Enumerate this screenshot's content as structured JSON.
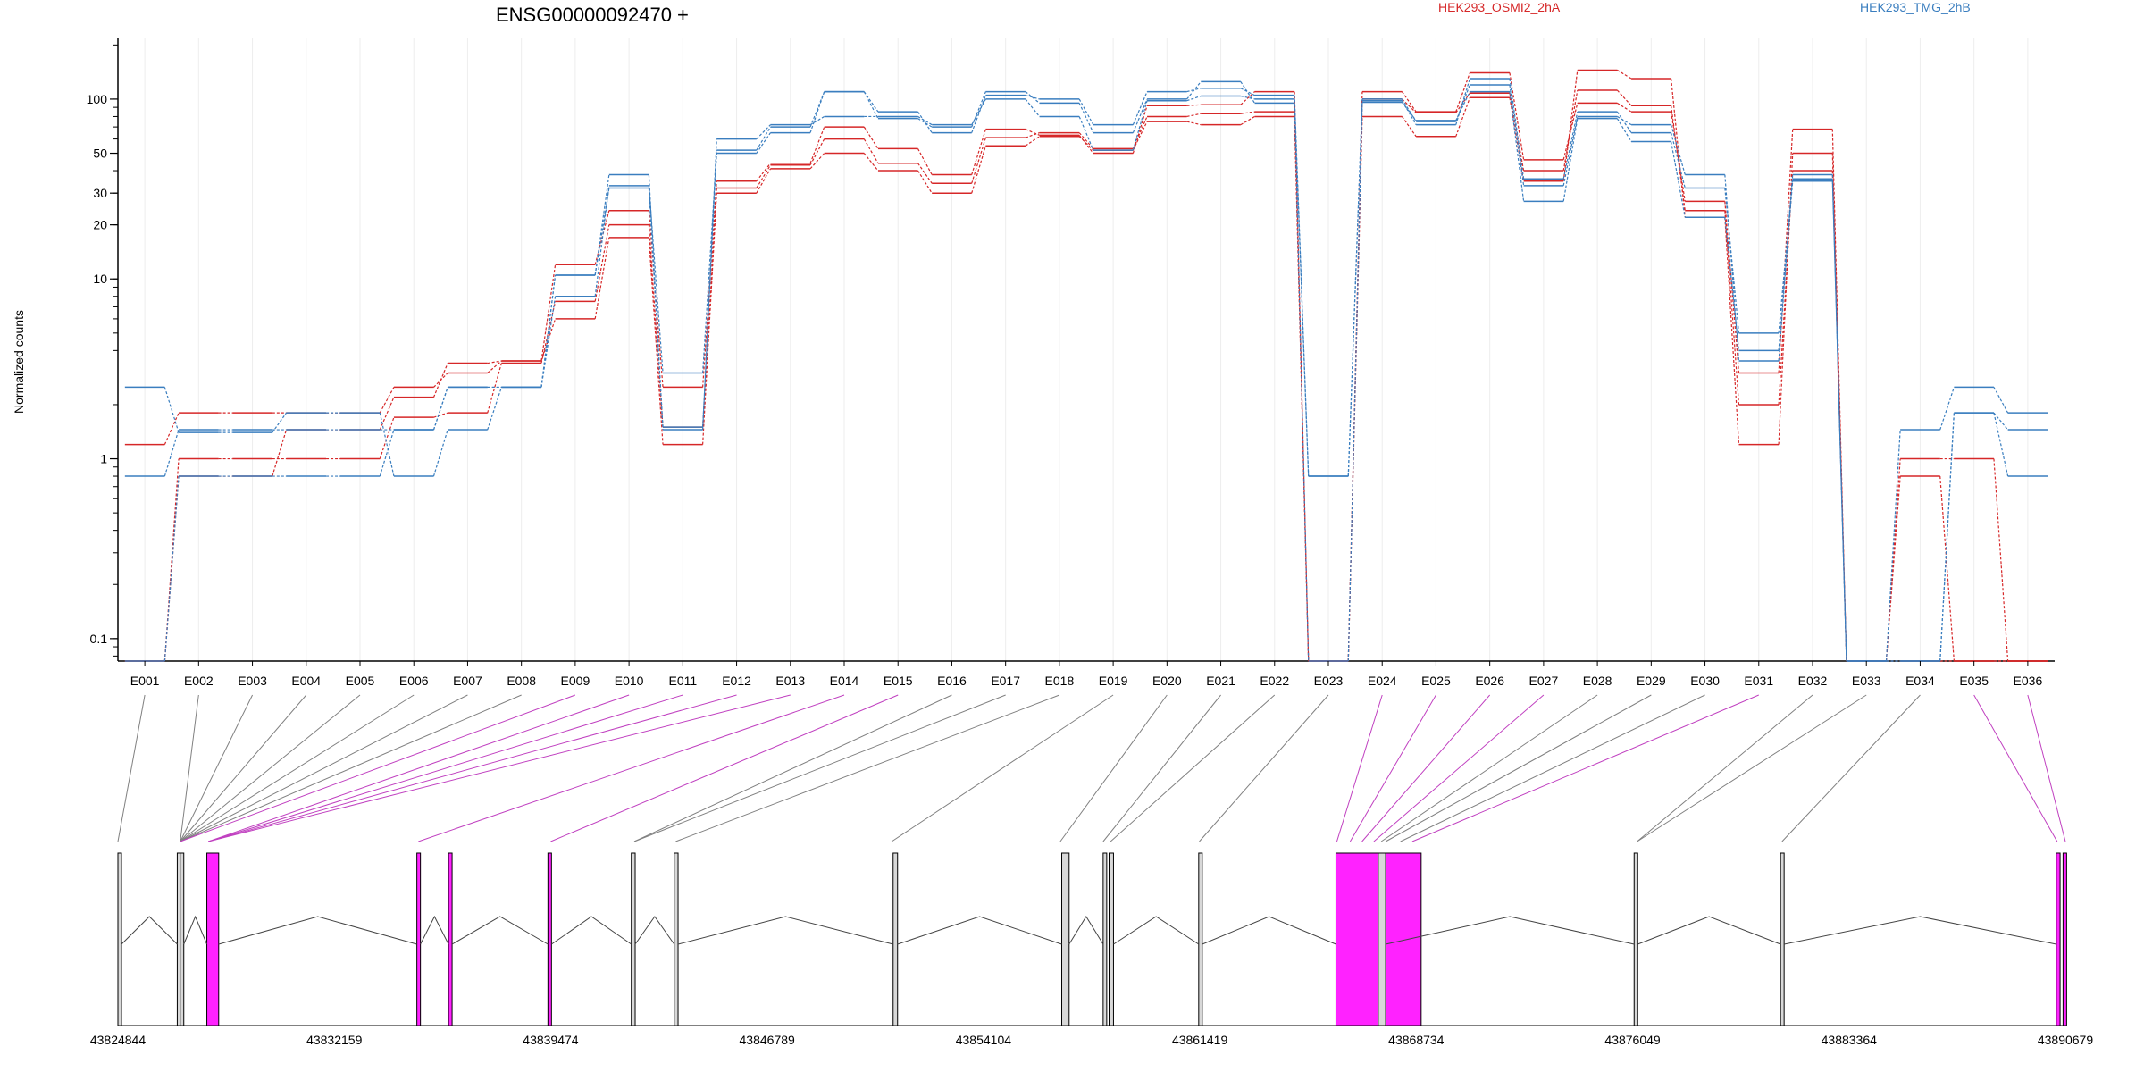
{
  "chart_data": {
    "type": "line",
    "title": "ENSG00000092470 +",
    "ylabel": "Normalized counts",
    "y_scale": "log",
    "ylim": [
      0.075,
      220
    ],
    "y_ticks": [
      0.1,
      1,
      10,
      20,
      30,
      50,
      100
    ],
    "y_tick_labels": [
      "0.1",
      "1",
      "10",
      "20",
      "30",
      "50",
      "100"
    ],
    "categories": [
      "E001",
      "E002",
      "E003",
      "E004",
      "E005",
      "E006",
      "E007",
      "E008",
      "E009",
      "E010",
      "E011",
      "E012",
      "E013",
      "E014",
      "E015",
      "E016",
      "E017",
      "E018",
      "E019",
      "E020",
      "E021",
      "E022",
      "E023",
      "E024",
      "E025",
      "E026",
      "E027",
      "E028",
      "E029",
      "E030",
      "E031",
      "E032",
      "E033",
      "E034",
      "E035",
      "E036"
    ],
    "legend": [
      {
        "label": "HEK293_OSMI2_2hA",
        "color": "#d62728"
      },
      {
        "label": "HEK293_TMG_2hB",
        "color": "#3a7ebf"
      }
    ],
    "series": [
      {
        "group": "HEK293_OSMI2_2hA",
        "color": "#d62728",
        "values": [
          1.2,
          1.8,
          1.8,
          1.8,
          1.8,
          2.5,
          3.0,
          3.5,
          6.0,
          17,
          1.2,
          30,
          41,
          50,
          40,
          30,
          55,
          62,
          52,
          75,
          72,
          80,
          0.075,
          80,
          62,
          102,
          35,
          145,
          130,
          22,
          1.2,
          50,
          0.075,
          1.0,
          1.0,
          0.075
        ]
      },
      {
        "group": "HEK293_OSMI2_2hA",
        "color": "#d62728",
        "values": [
          0.075,
          1.0,
          1.0,
          1.0,
          1.0,
          1.7,
          1.8,
          3.4,
          7.5,
          20,
          1.5,
          32,
          43,
          60,
          44,
          34,
          61,
          65,
          53,
          80,
          83,
          85,
          0.075,
          100,
          84,
          108,
          40,
          112,
          92,
          24,
          2.0,
          40,
          0.075,
          0.8,
          0.075,
          0.075
        ]
      },
      {
        "group": "HEK293_OSMI2_2hA",
        "color": "#d62728",
        "values": [
          0.075,
          0.8,
          0.8,
          1.45,
          1.45,
          2.2,
          3.4,
          3.5,
          12,
          24,
          2.5,
          35,
          44,
          70,
          53,
          38,
          68,
          63,
          50,
          92,
          93,
          110,
          0.075,
          110,
          85,
          140,
          46,
          95,
          85,
          27,
          3.0,
          68,
          0.075,
          0.075,
          0.075,
          0.075
        ]
      },
      {
        "group": "HEK293_TMG_2hB",
        "color": "#3a7ebf",
        "values": [
          2.5,
          1.4,
          1.4,
          1.8,
          1.8,
          0.8,
          1.45,
          2.5,
          8.0,
          33,
          3.0,
          50,
          65,
          110,
          85,
          65,
          105,
          100,
          72,
          110,
          115,
          105,
          0.8,
          100,
          75,
          120,
          33,
          80,
          72,
          38,
          3.5,
          38,
          0.075,
          0.075,
          1.8,
          1.45
        ]
      },
      {
        "group": "HEK293_TMG_2hB",
        "color": "#3a7ebf",
        "values": [
          0.8,
          1.45,
          1.45,
          1.45,
          1.45,
          1.45,
          2.5,
          2.5,
          10.5,
          32,
          1.5,
          52,
          70,
          110,
          78,
          70,
          110,
          95,
          65,
          100,
          125,
          95,
          0.8,
          98,
          72,
          130,
          36,
          85,
          65,
          32,
          5.0,
          36,
          0.075,
          1.45,
          2.5,
          1.8
        ]
      },
      {
        "group": "HEK293_TMG_2hB",
        "color": "#3a7ebf",
        "values": [
          0.075,
          0.8,
          0.8,
          0.8,
          0.8,
          1.45,
          2.5,
          2.5,
          10.5,
          38,
          1.45,
          60,
          72,
          80,
          80,
          72,
          100,
          80,
          52,
          98,
          104,
          100,
          0.075,
          96,
          76,
          110,
          27,
          78,
          58,
          22,
          4.0,
          35,
          0.075,
          0.075,
          1.8,
          0.8
        ]
      }
    ],
    "genome_ticks": [
      "43824844",
      "43832159",
      "43839474",
      "43846789",
      "43854104",
      "43861419",
      "43868734",
      "43876049",
      "43883364",
      "43890679"
    ],
    "genome_range": [
      43824844,
      43890679
    ],
    "exon_links": [
      {
        "exon": "E001",
        "pos": 43824844,
        "color": "#808080"
      },
      {
        "exon": "E002",
        "pos": 43826950,
        "color": "#808080"
      },
      {
        "exon": "E003",
        "pos": 43826950,
        "color": "#808080"
      },
      {
        "exon": "E004",
        "pos": 43826950,
        "color": "#808080"
      },
      {
        "exon": "E005",
        "pos": 43826950,
        "color": "#808080"
      },
      {
        "exon": "E006",
        "pos": 43826950,
        "color": "#808080"
      },
      {
        "exon": "E007",
        "pos": 43826950,
        "color": "#808080"
      },
      {
        "exon": "E008",
        "pos": 43826950,
        "color": "#808080"
      },
      {
        "exon": "E009",
        "pos": 43826950,
        "color": "#c040c0"
      },
      {
        "exon": "E010",
        "pos": 43827900,
        "color": "#c040c0"
      },
      {
        "exon": "E011",
        "pos": 43827900,
        "color": "#c040c0"
      },
      {
        "exon": "E012",
        "pos": 43827900,
        "color": "#c040c0"
      },
      {
        "exon": "E013",
        "pos": 43827900,
        "color": "#c040c0"
      },
      {
        "exon": "E014",
        "pos": 43835000,
        "color": "#c040c0"
      },
      {
        "exon": "E015",
        "pos": 43839474,
        "color": "#c040c0"
      },
      {
        "exon": "E016",
        "pos": 43842300,
        "color": "#808080"
      },
      {
        "exon": "E017",
        "pos": 43842300,
        "color": "#808080"
      },
      {
        "exon": "E018",
        "pos": 43843700,
        "color": "#808080"
      },
      {
        "exon": "E019",
        "pos": 43851000,
        "color": "#808080"
      },
      {
        "exon": "E020",
        "pos": 43856700,
        "color": "#808080"
      },
      {
        "exon": "E021",
        "pos": 43858150,
        "color": "#808080"
      },
      {
        "exon": "E022",
        "pos": 43858400,
        "color": "#808080"
      },
      {
        "exon": "E023",
        "pos": 43861400,
        "color": "#808080"
      },
      {
        "exon": "E024",
        "pos": 43866050,
        "color": "#c040c0"
      },
      {
        "exon": "E025",
        "pos": 43866500,
        "color": "#c040c0"
      },
      {
        "exon": "E026",
        "pos": 43866900,
        "color": "#c040c0"
      },
      {
        "exon": "E027",
        "pos": 43867300,
        "color": "#c040c0"
      },
      {
        "exon": "E028",
        "pos": 43867550,
        "color": "#808080"
      },
      {
        "exon": "E029",
        "pos": 43867700,
        "color": "#808080"
      },
      {
        "exon": "E030",
        "pos": 43868200,
        "color": "#808080"
      },
      {
        "exon": "E031",
        "pos": 43868600,
        "color": "#c040c0"
      },
      {
        "exon": "E032",
        "pos": 43876200,
        "color": "#808080"
      },
      {
        "exon": "E033",
        "pos": 43876200,
        "color": "#808080"
      },
      {
        "exon": "E034",
        "pos": 43881100,
        "color": "#808080"
      },
      {
        "exon": "E035",
        "pos": 43890400,
        "color": "#c040c0"
      },
      {
        "exon": "E036",
        "pos": 43890679,
        "color": "#c040c0"
      }
    ],
    "exon_blocks": [
      {
        "start": 43824844,
        "end": 43824900,
        "color": "#d8d8d8"
      },
      {
        "start": 43826850,
        "end": 43826900,
        "color": "#d8d8d8"
      },
      {
        "start": 43826950,
        "end": 43827000,
        "color": "#d8d8d8"
      },
      {
        "start": 43827850,
        "end": 43828250,
        "color": "#ff22ff"
      },
      {
        "start": 43834950,
        "end": 43835050,
        "color": "#ff22ff"
      },
      {
        "start": 43836020,
        "end": 43836100,
        "color": "#ff22ff"
      },
      {
        "start": 43839380,
        "end": 43839474,
        "color": "#ff22ff"
      },
      {
        "start": 43842200,
        "end": 43842330,
        "color": "#d8d8d8"
      },
      {
        "start": 43843650,
        "end": 43843780,
        "color": "#d8d8d8"
      },
      {
        "start": 43851050,
        "end": 43851200,
        "color": "#d8d8d8"
      },
      {
        "start": 43856750,
        "end": 43857000,
        "color": "#d8d8d8"
      },
      {
        "start": 43858150,
        "end": 43858250,
        "color": "#d8d8d8"
      },
      {
        "start": 43858350,
        "end": 43858500,
        "color": "#d8d8d8"
      },
      {
        "start": 43861380,
        "end": 43861440,
        "color": "#d8d8d8"
      },
      {
        "start": 43866020,
        "end": 43868900,
        "color": "#ff22ff"
      },
      {
        "start": 43867450,
        "end": 43867700,
        "color": "#d8d8d8"
      },
      {
        "start": 43876100,
        "end": 43876200,
        "color": "#d8d8d8"
      },
      {
        "start": 43881050,
        "end": 43881150,
        "color": "#d8d8d8"
      },
      {
        "start": 43890370,
        "end": 43890500,
        "color": "#ff22ff"
      },
      {
        "start": 43890600,
        "end": 43890679,
        "color": "#ff22ff"
      }
    ]
  }
}
